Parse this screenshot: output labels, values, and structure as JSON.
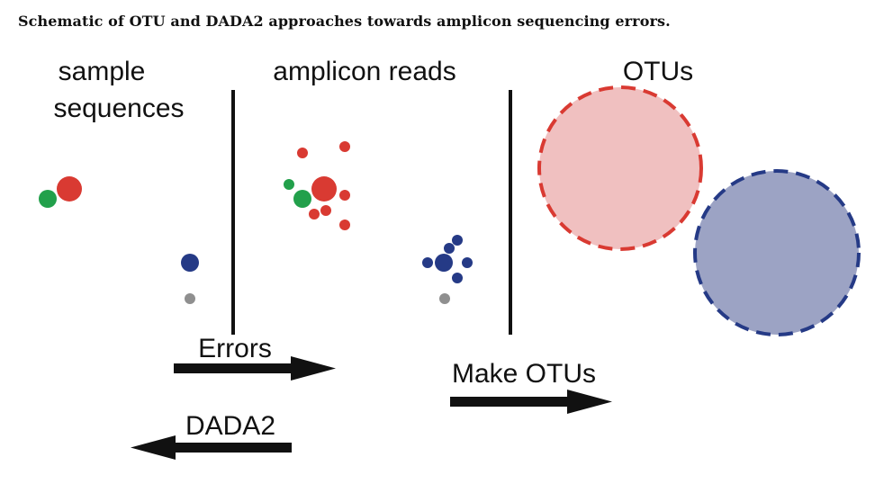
{
  "caption": "Schematic of OTU and DADA2 approaches towards amplicon sequencing errors.",
  "panels": {
    "sample_sequences": [
      "sample",
      "sequences"
    ],
    "amplicon_reads": "amplicon reads",
    "otus": "OTUs"
  },
  "arrows": {
    "errors": "Errors",
    "make_otus": "Make OTUs",
    "dada2": "DADA2"
  },
  "colors": {
    "red": "#d93a32",
    "green": "#22a04b",
    "blue": "#253a86",
    "gray": "#8f8f8f",
    "otu_red_fill": "#f0c0c0",
    "otu_red_stroke": "#d93a32",
    "otu_blue_fill": "#9ca3c4",
    "otu_blue_stroke": "#253a86",
    "line": "#111111"
  }
}
